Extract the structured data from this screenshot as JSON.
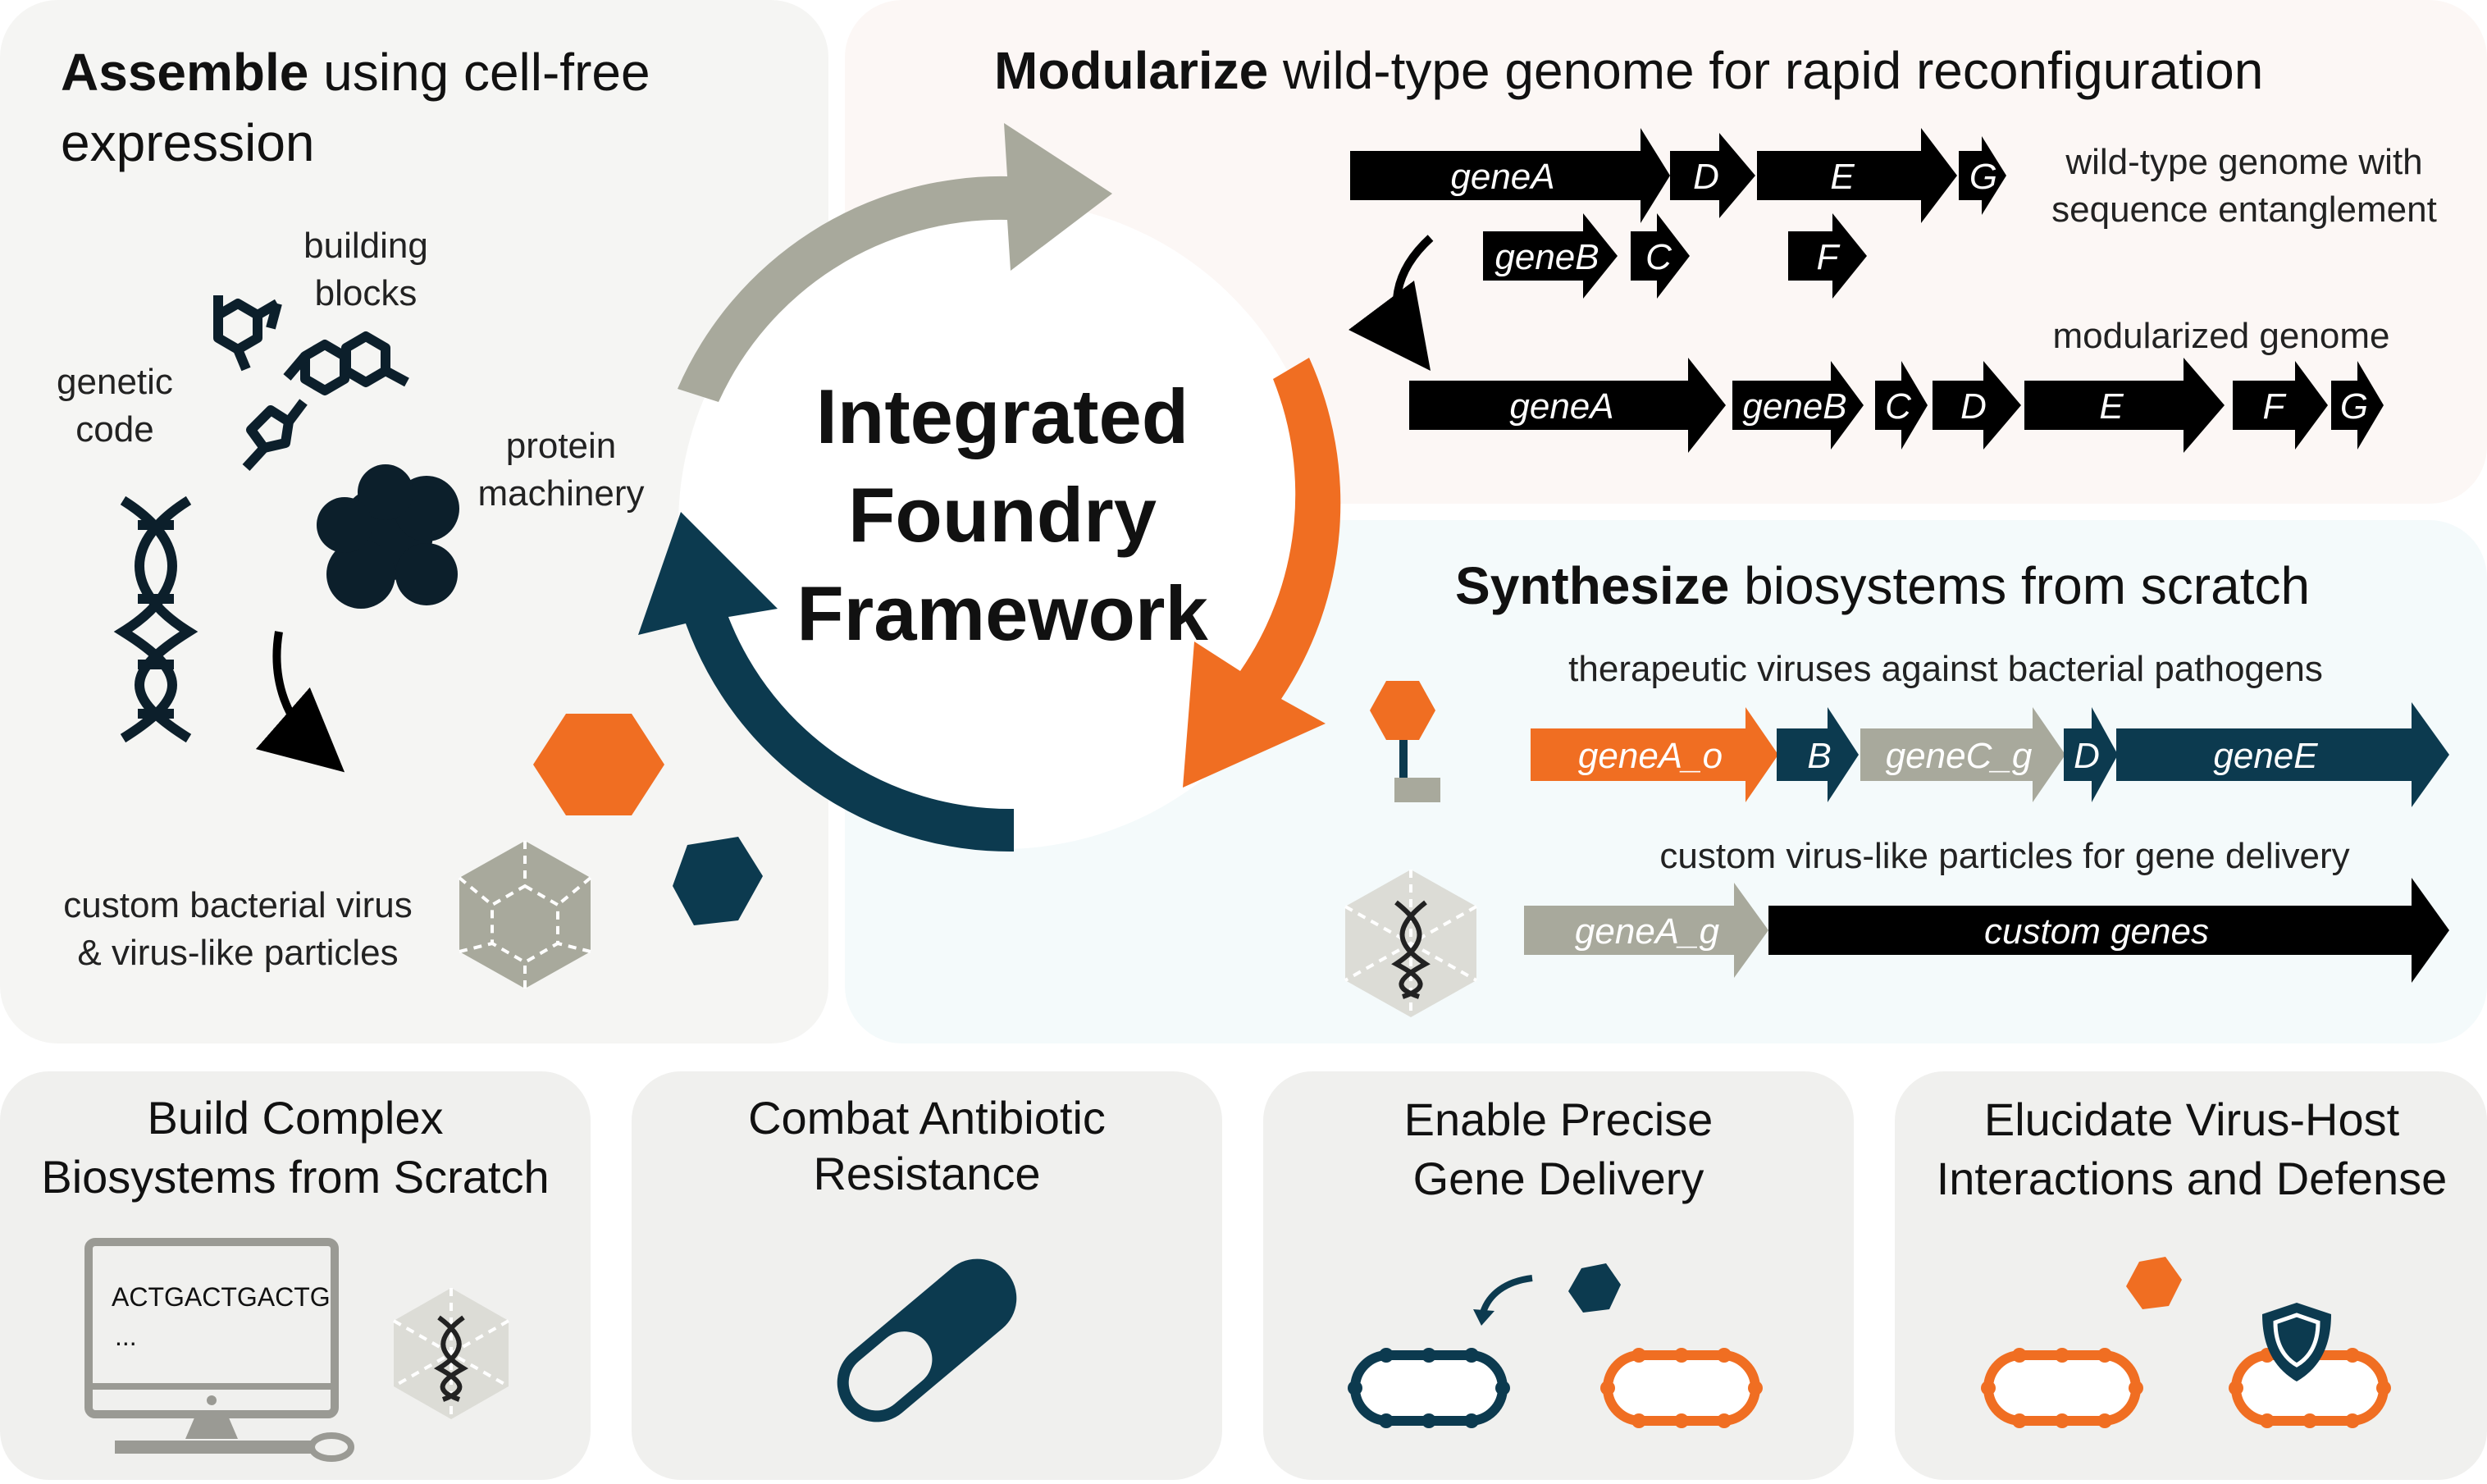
{
  "colors": {
    "black": "#000000",
    "grey": "#a8a99c",
    "orange": "#f06e22",
    "navy": "#0c3a4f",
    "panel_grey": "#f5f5f3",
    "panel_pink": "#fcf7f5",
    "panel_blue": "#f4fafb",
    "panel_bottom": "#f0f0ee"
  },
  "assemble": {
    "title_bold": "Assemble",
    "title_rest": " using cell-free",
    "title_line2": "expression",
    "building_blocks": [
      "building",
      "blocks"
    ],
    "genetic_code": [
      "genetic",
      "code"
    ],
    "protein_machinery": [
      "protein",
      "machinery"
    ],
    "custom_virus": [
      "custom bacterial virus",
      "& virus-like particles"
    ]
  },
  "center": {
    "lines": [
      "Integrated",
      "Foundry",
      "Framework"
    ]
  },
  "modularize": {
    "title_bold": "Modularize",
    "title_rest": " wild-type genome for rapid reconfiguration",
    "wildtype_label": [
      "wild-type genome with",
      "sequence entanglement"
    ],
    "modular_label": "modularized genome",
    "wt_genes": {
      "a": "geneA",
      "d": "D",
      "e": "E",
      "g": "G",
      "b": "geneB",
      "c": "C",
      "f": "F"
    },
    "mod_genes": [
      "geneA",
      "geneB",
      "C",
      "D",
      "E",
      "F",
      "G"
    ]
  },
  "synthesize": {
    "title_bold": "Synthesize",
    "title_rest": " biosystems from scratch",
    "therapeutic_label": "therapeutic viruses against bacterial pathogens",
    "therapeutic_genes": [
      "geneA_o",
      "B",
      "geneC_g",
      "D",
      "geneE"
    ],
    "vlp_label": "custom virus-like particles for gene delivery",
    "vlp_genes": [
      "geneA_g",
      "custom genes"
    ]
  },
  "bottom": {
    "build": [
      "Build Complex",
      "Biosystems from Scratch"
    ],
    "dna_text": [
      "ACTGACTGACTG",
      "..."
    ],
    "combat": [
      "Combat Antibiotic",
      "Resistance"
    ],
    "enable": [
      "Enable Precise",
      "Gene Delivery"
    ],
    "elucidate": [
      "Elucidate Virus-Host",
      "Interactions and Defense"
    ]
  }
}
